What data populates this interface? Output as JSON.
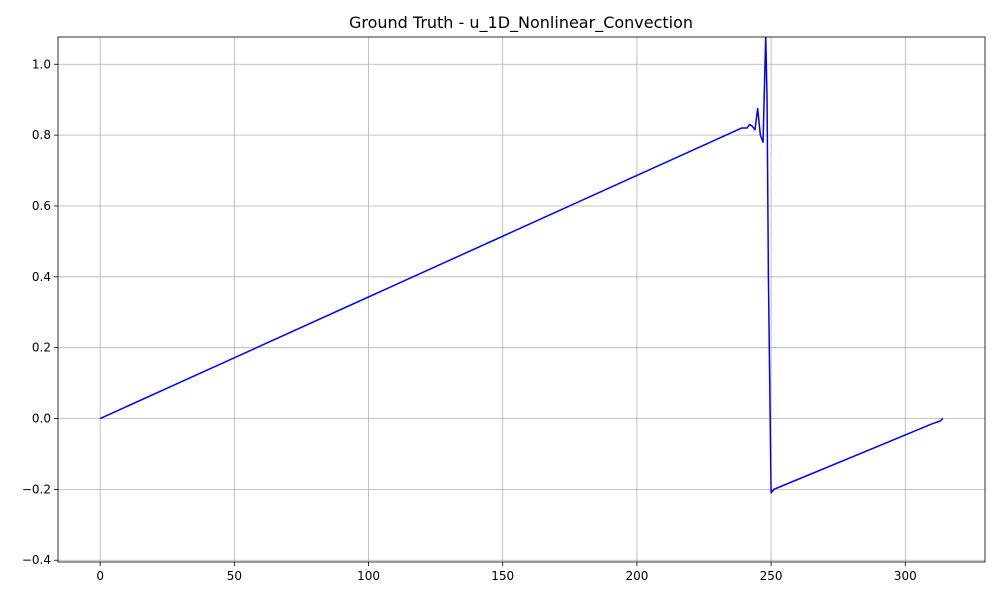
{
  "chart_data": {
    "type": "line",
    "title": "Ground Truth - u_1D_Nonlinear_Convection",
    "xlabel": "",
    "ylabel": "",
    "xlim": [
      -15.7,
      329.7
    ],
    "ylim": [
      -0.405,
      1.077
    ],
    "xticks": [
      0,
      50,
      100,
      150,
      200,
      250,
      300
    ],
    "yticks": [
      -0.4,
      -0.2,
      0.0,
      0.2,
      0.4,
      0.6,
      0.8,
      1.0
    ],
    "ytick_labels": [
      "−0.4",
      "−0.2",
      "0.0",
      "0.2",
      "0.4",
      "0.6",
      "0.8",
      "1.0"
    ],
    "grid": true,
    "legend": "none",
    "series": [
      {
        "color": "#0000ff",
        "x": [
          0,
          239,
          240,
          241,
          242,
          243,
          244,
          245,
          246,
          247,
          248,
          248.5,
          249,
          250,
          251,
          310,
          313,
          314
        ],
        "y": [
          0.0,
          0.82,
          0.82,
          0.82,
          0.83,
          0.825,
          0.815,
          0.875,
          0.8,
          0.78,
          1.08,
          0.9,
          0.4,
          -0.21,
          -0.2,
          -0.015,
          -0.007,
          0.0
        ]
      }
    ]
  }
}
